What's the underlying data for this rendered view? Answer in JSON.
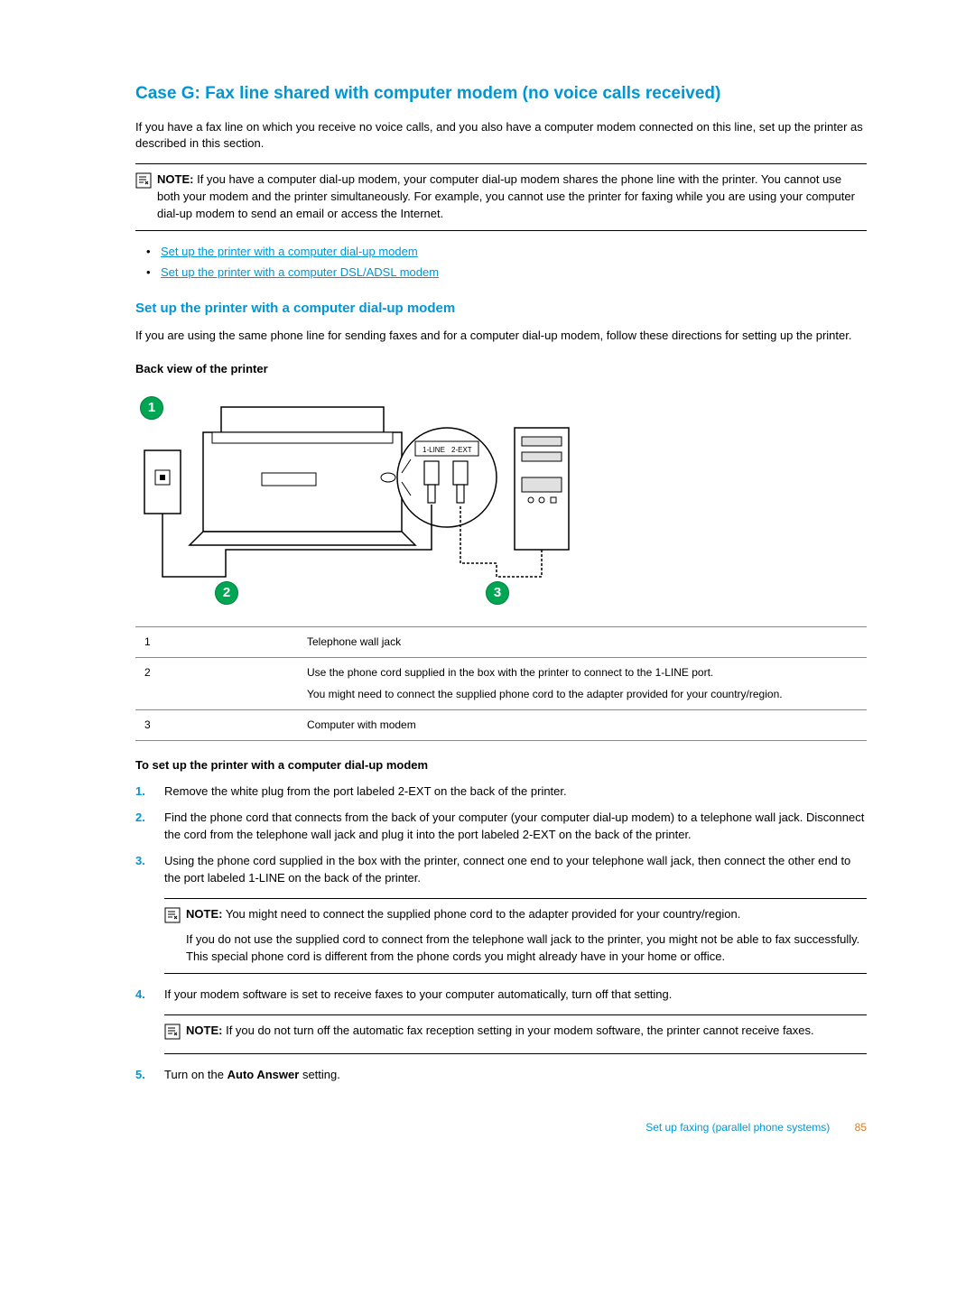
{
  "title": "Case G: Fax line shared with computer modem (no voice calls received)",
  "intro": "If you have a fax line on which you receive no voice calls, and you also have a computer modem connected on this line, set up the printer as described in this section.",
  "note1": {
    "label": "NOTE:",
    "text": "If you have a computer dial-up modem, your computer dial-up modem shares the phone line with the printer. You cannot use both your modem and the printer simultaneously. For example, you cannot use the printer for faxing while you are using your computer dial-up modem to send an email or access the Internet."
  },
  "links": {
    "a": "Set up the printer with a computer dial-up modem",
    "b": "Set up the printer with a computer DSL/ADSL modem"
  },
  "h2": "Set up the printer with a computer dial-up modem",
  "p2": "If you are using the same phone line for sending faxes and for a computer dial-up modem, follow these directions for setting up the printer.",
  "diagram_label": "Back view of the printer",
  "diagram": {
    "port_left": "1-LINE",
    "port_right": "2-EXT",
    "callouts": {
      "c1": "1",
      "c2": "2",
      "c3": "3"
    }
  },
  "table": {
    "rows": [
      {
        "num": "1",
        "text": "Telephone wall jack",
        "sub": ""
      },
      {
        "num": "2",
        "text": "Use the phone cord supplied in the box with the printer to connect to the 1-LINE port.",
        "sub": "You might need to connect the supplied phone cord to the adapter provided for your country/region."
      },
      {
        "num": "3",
        "text": "Computer with modem",
        "sub": ""
      }
    ]
  },
  "steps_title": "To set up the printer with a computer dial-up modem",
  "steps": {
    "s1": "Remove the white plug from the port labeled 2-EXT on the back of the printer.",
    "s2": "Find the phone cord that connects from the back of your computer (your computer dial-up modem) to a telephone wall jack. Disconnect the cord from the telephone wall jack and plug it into the port labeled 2-EXT on the back of the printer.",
    "s3": "Using the phone cord supplied in the box with the printer, connect one end to your telephone wall jack, then connect the other end to the port labeled 1-LINE on the back of the printer.",
    "s3_note_label": "NOTE:",
    "s3_note": "You might need to connect the supplied phone cord to the adapter provided for your country/region.",
    "s3_note2": "If you do not use the supplied cord to connect from the telephone wall jack to the printer, you might not be able to fax successfully. This special phone cord is different from the phone cords you might already have in your home or office.",
    "s4": "If your modem software is set to receive faxes to your computer automatically, turn off that setting.",
    "s4_note_label": "NOTE:",
    "s4_note": "If you do not turn off the automatic fax reception setting in your modem software, the printer cannot receive faxes.",
    "s5_a": "Turn on the ",
    "s5_b": "Auto Answer",
    "s5_c": " setting."
  },
  "footer": {
    "section": "Set up faxing (parallel phone systems)",
    "page": "85"
  }
}
